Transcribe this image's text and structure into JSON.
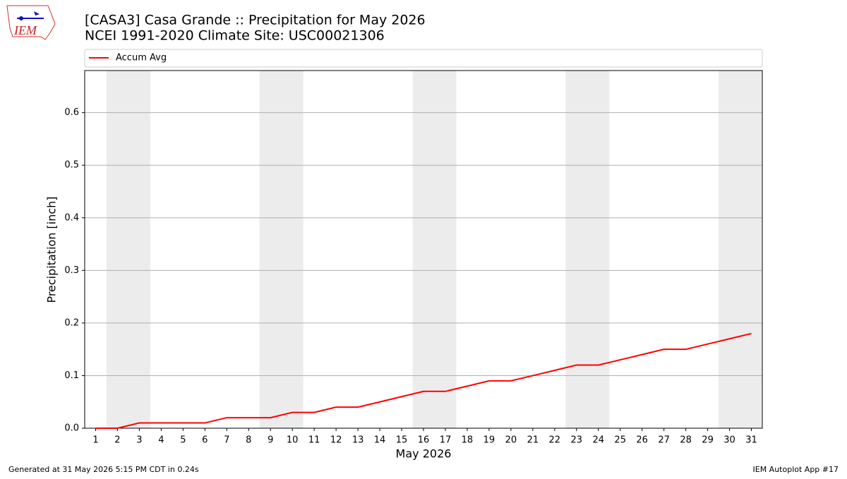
{
  "logo_text": "IEM",
  "chart_data": {
    "type": "line",
    "title": "[CASA3] Casa Grande :: Precipitation for May 2026",
    "subtitle": "NCEI 1991-2020 Climate Site: USC00021306",
    "x_label": "May 2026",
    "y_label": "Precipitation [inch]",
    "x": [
      1,
      2,
      3,
      4,
      5,
      6,
      7,
      8,
      9,
      10,
      11,
      12,
      13,
      14,
      15,
      16,
      17,
      18,
      19,
      20,
      21,
      22,
      23,
      24,
      25,
      26,
      27,
      28,
      29,
      30,
      31
    ],
    "series": [
      {
        "name": "Accum Avg",
        "color": "#ff0000",
        "values": [
          0,
          0,
          0.01,
          0.01,
          0.01,
          0.01,
          0.02,
          0.02,
          0.02,
          0.03,
          0.03,
          0.04,
          0.04,
          0.05,
          0.06,
          0.07,
          0.07,
          0.08,
          0.09,
          0.09,
          0.1,
          0.11,
          0.12,
          0.12,
          0.13,
          0.14,
          0.15,
          0.15,
          0.16,
          0.17,
          0.18
        ]
      }
    ],
    "shaded_spans": [
      [
        1.5,
        3.5
      ],
      [
        8.5,
        10.5
      ],
      [
        15.5,
        17.5
      ],
      [
        22.5,
        24.5
      ],
      [
        29.5,
        31.5
      ]
    ],
    "shade_color": "#ececec",
    "xlim": [
      0.5,
      31.5
    ],
    "ylim": [
      0,
      0.68
    ],
    "xticks": [
      1,
      2,
      3,
      4,
      5,
      6,
      7,
      8,
      9,
      10,
      11,
      12,
      13,
      14,
      15,
      16,
      17,
      18,
      19,
      20,
      21,
      22,
      23,
      24,
      25,
      26,
      27,
      28,
      29,
      30,
      31
    ],
    "yticks": [
      {
        "value": 0,
        "label": "0.0"
      },
      0.1,
      0.2,
      0.3,
      0.4,
      0.5,
      0.6
    ],
    "grid": true,
    "legend": "top",
    "footer_left": "Generated at 31 May 2026 5:15 PM CDT in 0.24s",
    "footer_right": "IEM Autoplot App #17"
  }
}
